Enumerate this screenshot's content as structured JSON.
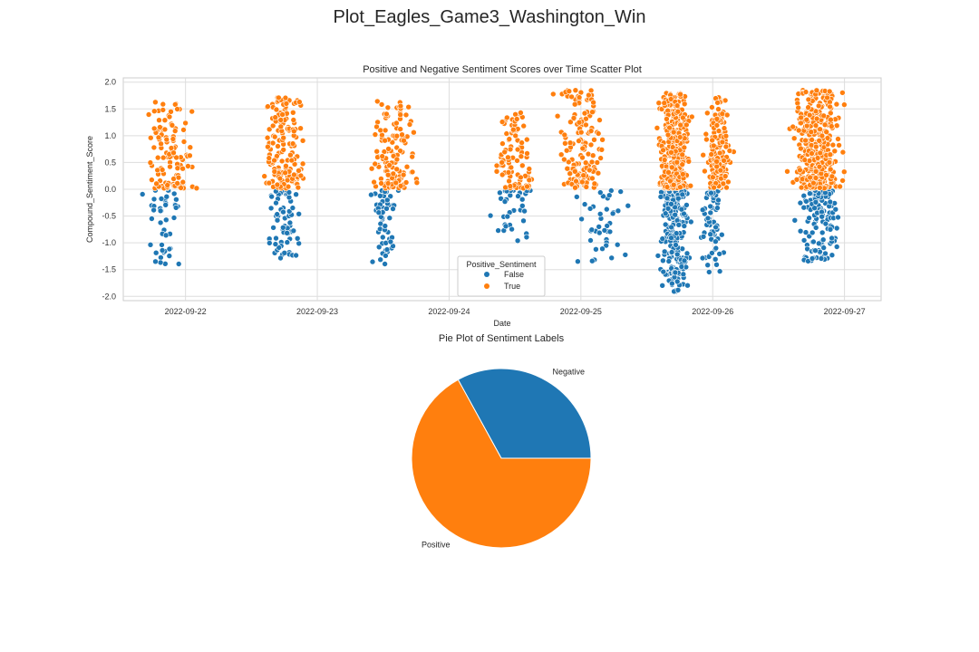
{
  "figure": {
    "suptitle": "Plot_Eagles_Game3_Washington_Win"
  },
  "chart_data": [
    {
      "type": "scatter",
      "title": "Positive and Negative Sentiment Scores over Time Scatter Plot",
      "xlabel": "Date",
      "ylabel": "Compound_Sentiment_Score",
      "x_type": "date",
      "xlim": [
        "2022-09-21 12:40",
        "2022-09-27 06:40"
      ],
      "ylim": [
        -2.08,
        2.08
      ],
      "xticks": [
        "2022-09-22",
        "2022-09-23",
        "2022-09-24",
        "2022-09-25",
        "2022-09-26",
        "2022-09-27"
      ],
      "yticks": [
        "2.0",
        "1.5",
        "1.0",
        "0.5",
        "0.0",
        "-0.5",
        "-1.0",
        "-1.5",
        "-2.0"
      ],
      "ytick_values": [
        2.0,
        1.5,
        1.0,
        0.5,
        0.0,
        -0.5,
        -1.0,
        -1.5,
        -2.0
      ],
      "grid": true,
      "legend": {
        "title": "Positive_Sentiment",
        "placement": "lower center",
        "entries": [
          "False",
          "True"
        ]
      },
      "series": [
        {
          "name": "False",
          "color": "#1f77b4",
          "clusters": [
            {
              "center": "2022-09-21 20:00",
              "spread_hours": 5,
              "points": 45,
              "y_range": [
                -1.4,
                -0.02
              ]
            },
            {
              "center": "2022-09-22 18:00",
              "spread_hours": 4,
              "points": 70,
              "y_range": [
                -1.3,
                -0.02
              ]
            },
            {
              "center": "2022-09-23 12:00",
              "spread_hours": 3,
              "points": 55,
              "y_range": [
                -1.4,
                -0.02
              ]
            },
            {
              "center": "2022-09-24 12:00",
              "spread_hours": 5,
              "points": 35,
              "y_range": [
                -1.05,
                -0.02
              ]
            },
            {
              "center": "2022-09-25 04:00",
              "spread_hours": 6,
              "points": 40,
              "y_range": [
                -1.4,
                -0.02
              ]
            },
            {
              "center": "2022-09-25 17:00",
              "spread_hours": 3.5,
              "points": 220,
              "y_range": [
                -1.92,
                -0.02
              ]
            },
            {
              "center": "2022-09-26 00:00",
              "spread_hours": 3,
              "points": 60,
              "y_range": [
                -1.55,
                -0.02
              ]
            },
            {
              "center": "2022-09-26 19:00",
              "spread_hours": 5,
              "points": 130,
              "y_range": [
                -1.35,
                -0.02
              ]
            }
          ]
        },
        {
          "name": "True",
          "color": "#ff7f0e",
          "clusters": [
            {
              "center": "2022-09-21 21:00",
              "spread_hours": 6,
              "points": 110,
              "y_range": [
                0.02,
                1.65
              ]
            },
            {
              "center": "2022-09-22 18:00",
              "spread_hours": 5,
              "points": 160,
              "y_range": [
                0.02,
                1.72
              ]
            },
            {
              "center": "2022-09-23 14:00",
              "spread_hours": 5,
              "points": 130,
              "y_range": [
                0.02,
                1.65
              ]
            },
            {
              "center": "2022-09-24 12:00",
              "spread_hours": 5,
              "points": 90,
              "y_range": [
                0.02,
                1.45
              ]
            },
            {
              "center": "2022-09-25 00:00",
              "spread_hours": 6,
              "points": 150,
              "y_range": [
                0.02,
                1.85
              ]
            },
            {
              "center": "2022-09-25 17:00",
              "spread_hours": 3.5,
              "points": 420,
              "y_range": [
                0.02,
                1.8
              ]
            },
            {
              "center": "2022-09-26 01:00",
              "spread_hours": 3,
              "points": 160,
              "y_range": [
                0.02,
                1.75
              ]
            },
            {
              "center": "2022-09-26 19:00",
              "spread_hours": 6,
              "points": 340,
              "y_range": [
                0.02,
                1.85
              ]
            }
          ]
        }
      ]
    },
    {
      "type": "pie",
      "title": "Pie Plot of Sentiment Labels",
      "labels": [
        "Negative",
        "Positive"
      ],
      "values": [
        0.33,
        0.67
      ],
      "colors": [
        "#1f77b4",
        "#ff7f0e"
      ],
      "start_angle_deg": 0,
      "direction": "counterclockwise"
    }
  ]
}
